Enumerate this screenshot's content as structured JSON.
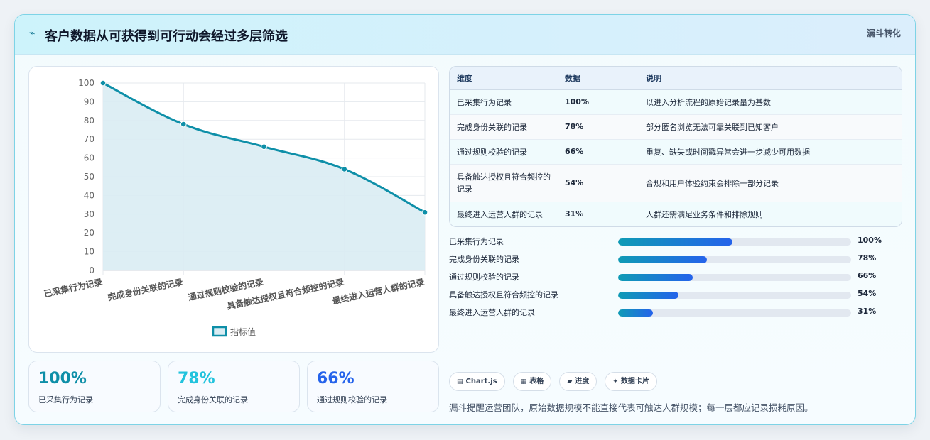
{
  "header": {
    "icon": "chart-trend-icon",
    "title": "客户数据从可获得到可行动会经过多层筛选",
    "tag": "漏斗转化"
  },
  "chart_data": {
    "type": "area",
    "categories": [
      "已采集行为记录",
      "完成身份关联的记录",
      "通过规则校验的记录",
      "具备触达授权且符合频控的记录",
      "最终进入运营人群的记录"
    ],
    "series": [
      {
        "name": "指标值",
        "values": [
          100,
          78,
          66,
          54,
          31
        ]
      }
    ],
    "ylim": [
      0,
      100
    ],
    "yticks": [
      "0",
      "10",
      "20",
      "30",
      "40",
      "50",
      "60",
      "70",
      "80",
      "90",
      "100"
    ],
    "grid": true,
    "legend": "bottom",
    "line_color": "#0e8fa8",
    "fill_color": "#d9ecf3"
  },
  "stats": [
    {
      "value": "100%",
      "label": "已采集行为记录",
      "color": "#0e8fa8"
    },
    {
      "value": "78%",
      "label": "完成身份关联的记录",
      "color": "#22c3dd"
    },
    {
      "value": "66%",
      "label": "通过规则校验的记录",
      "color": "#2563eb"
    }
  ],
  "table": {
    "headers": [
      "维度",
      "数据",
      "说明"
    ],
    "rows": [
      {
        "dim": "已采集行为记录",
        "data": "100%",
        "desc": "以进入分析流程的原始记录量为基数"
      },
      {
        "dim": "完成身份关联的记录",
        "data": "78%",
        "desc": "部分匿名浏览无法可靠关联到已知客户"
      },
      {
        "dim": "通过规则校验的记录",
        "data": "66%",
        "desc": "重复、缺失或时间戳异常会进一步减少可用数据"
      },
      {
        "dim": "具备触达授权且符合频控的记录",
        "data": "54%",
        "desc": "合规和用户体验约束会排除一部分记录"
      },
      {
        "dim": "最终进入运营人群的记录",
        "data": "31%",
        "desc": "人群还需满足业务条件和排除规则"
      }
    ]
  },
  "progress": [
    {
      "label": "已采集行为记录",
      "pct_text": "100%",
      "fill_fraction": 0.49
    },
    {
      "label": "完成身份关联的记录",
      "pct_text": "78%",
      "fill_fraction": 0.38
    },
    {
      "label": "通过规则校验的记录",
      "pct_text": "66%",
      "fill_fraction": 0.32
    },
    {
      "label": "具备触达授权且符合频控的记录",
      "pct_text": "54%",
      "fill_fraction": 0.26
    },
    {
      "label": "最终进入运营人群的记录",
      "pct_text": "31%",
      "fill_fraction": 0.15
    }
  ],
  "chips": [
    {
      "icon": "▤",
      "label": "Chart.js"
    },
    {
      "icon": "▦",
      "label": "表格"
    },
    {
      "icon": "▰",
      "label": "进度"
    },
    {
      "icon": "✦",
      "label": "数据卡片"
    }
  ],
  "note": "漏斗提醒运营团队，原始数据规模不能直接代表可触达人群规模；每一层都应记录损耗原因。"
}
